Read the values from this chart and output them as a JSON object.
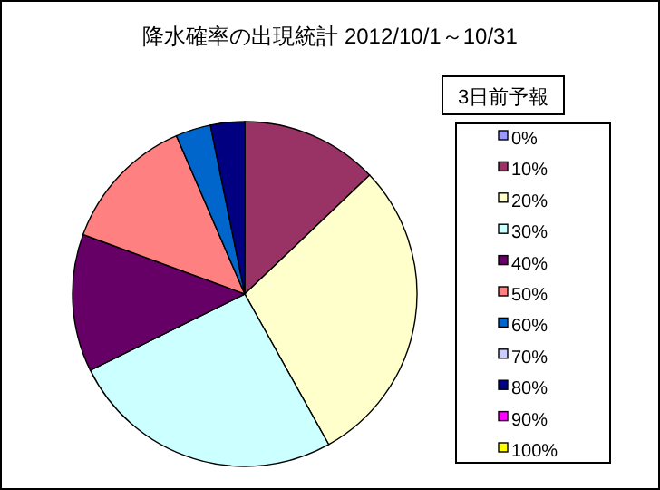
{
  "chart_data": {
    "type": "pie",
    "title": "降水確率の出現統計 2012/10/1～10/31",
    "legend_title": "3日前予報",
    "legend": "right",
    "categories": [
      "0%",
      "10%",
      "20%",
      "30%",
      "40%",
      "50%",
      "60%",
      "70%",
      "80%",
      "90%",
      "100%"
    ],
    "values": [
      0,
      12.9,
      29.0,
      25.8,
      12.9,
      12.9,
      3.3,
      0,
      3.2,
      0,
      0
    ],
    "colors": [
      "#9999ff",
      "#993366",
      "#ffffcc",
      "#ccffff",
      "#660066",
      "#ff8080",
      "#0066cc",
      "#ccccff",
      "#000080",
      "#ff00ff",
      "#ffff00"
    ]
  }
}
